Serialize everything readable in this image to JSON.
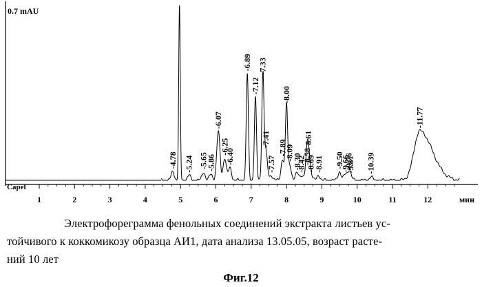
{
  "chart_data": {
    "type": "line",
    "title": "",
    "ylabel": "0.7 mAU",
    "baseline_label": "Capel",
    "xlabel": "мин",
    "xlim": [
      0,
      12.9
    ],
    "x_ticks": [
      1,
      2,
      3,
      4,
      5,
      6,
      7,
      8,
      9,
      10,
      11,
      12
    ],
    "ylim": [
      0,
      0.7
    ],
    "series": [
      {
        "values": [
          {
            "x": 4.78,
            "y": 0.035
          },
          {
            "x": 4.97,
            "y": 0.7
          },
          {
            "x": 5.24,
            "y": 0.02
          },
          {
            "x": 5.65,
            "y": 0.033
          },
          {
            "x": 5.86,
            "y": 0.025
          },
          {
            "x": 6.07,
            "y": 0.197
          },
          {
            "x": 6.25,
            "y": 0.09
          },
          {
            "x": 6.4,
            "y": 0.05
          },
          {
            "x": 6.89,
            "y": 0.43
          },
          {
            "x": 7.12,
            "y": 0.335
          },
          {
            "x": 7.33,
            "y": 0.415
          },
          {
            "x": 7.41,
            "y": 0.12
          },
          {
            "x": 7.57,
            "y": 0.02
          },
          {
            "x": 7.89,
            "y": 0.085
          },
          {
            "x": 8.0,
            "y": 0.3
          },
          {
            "x": 8.09,
            "y": 0.065
          },
          {
            "x": 8.3,
            "y": 0.03
          },
          {
            "x": 8.42,
            "y": 0.02
          },
          {
            "x": 8.58,
            "y": 0.05
          },
          {
            "x": 8.61,
            "y": 0.12
          },
          {
            "x": 8.69,
            "y": 0.022
          },
          {
            "x": 8.91,
            "y": 0.02
          },
          {
            "x": 9.5,
            "y": 0.035
          },
          {
            "x": 9.66,
            "y": 0.022
          },
          {
            "x": 9.76,
            "y": 0.03
          },
          {
            "x": 9.81,
            "y": 0.018
          },
          {
            "x": 10.39,
            "y": 0.015
          },
          {
            "x": 11.77,
            "y": 0.2
          }
        ]
      }
    ],
    "peak_labels": [
      "4.78",
      "5.24",
      "5.65",
      "5.86",
      "6.07",
      "6.25",
      "6.40",
      "6.89",
      "7.12",
      "7.33",
      "7.41",
      "7.57",
      "7.89",
      "8.00",
      "8.09",
      "8.30",
      "8.42",
      "8.58",
      "8.61",
      "8.69",
      "8.91",
      "9.50",
      "9.66",
      "9.76",
      "9.81",
      "10.39",
      "11.77"
    ],
    "grid": false,
    "legend": "none"
  },
  "caption": {
    "line1": "Электрофореграмма фенольных соединений экстракта листьев ус-",
    "line2": "тойчивого к  коккомикозу образца АИ1, дата анализа 13.05.05, возраст расте-",
    "line3": "ний 10 лет"
  },
  "figure_label": "Фиг.12"
}
